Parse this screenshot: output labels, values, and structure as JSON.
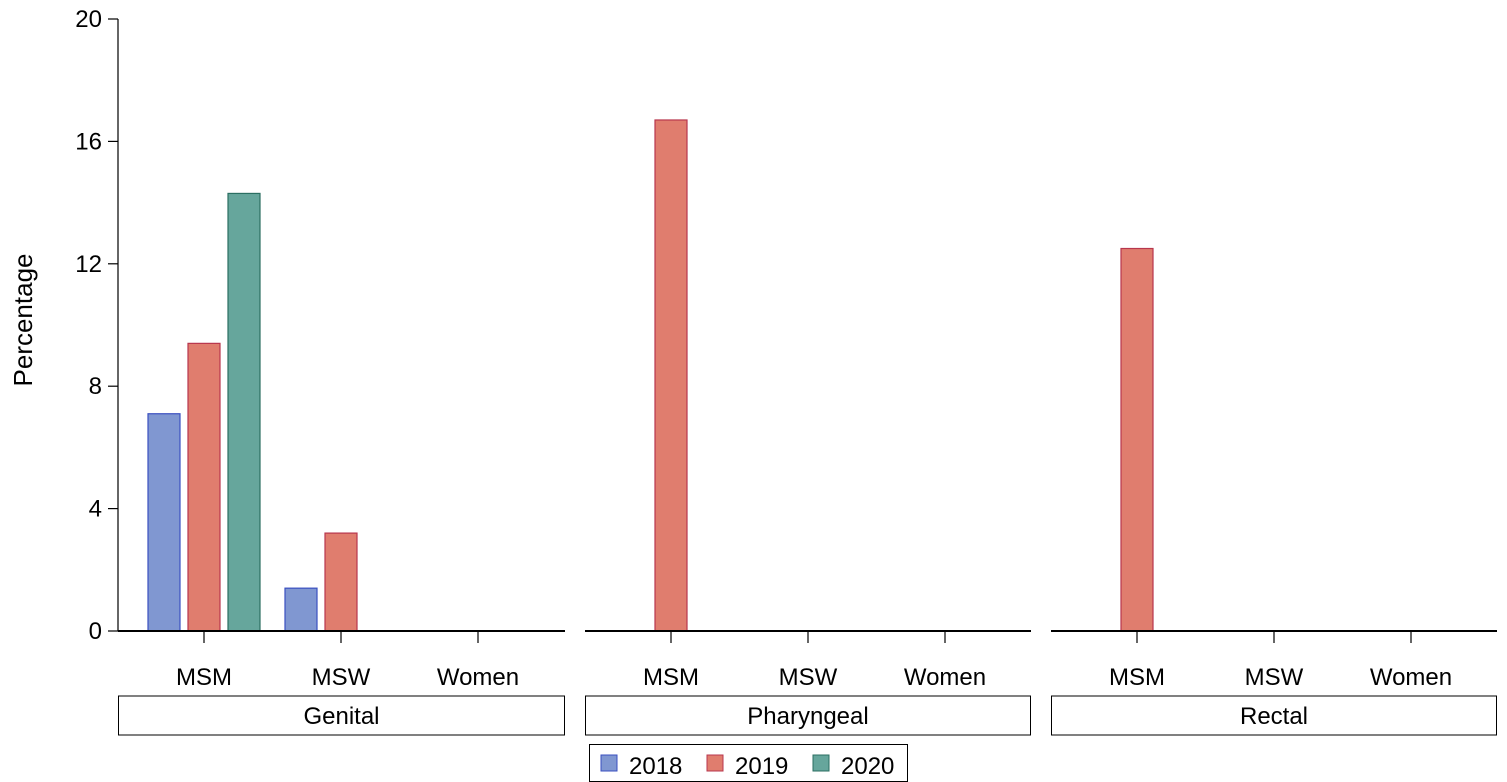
{
  "chart_data": {
    "type": "bar",
    "ylabel": "Percentage",
    "ylim": [
      0,
      20
    ],
    "yticks": [
      0,
      4,
      8,
      12,
      16,
      20
    ],
    "categories": [
      "MSM",
      "MSW",
      "Women"
    ],
    "facets": [
      {
        "name": "Genital",
        "series": [
          {
            "name": "2018",
            "values": [
              7.1,
              1.4,
              0
            ]
          },
          {
            "name": "2019",
            "values": [
              9.4,
              3.2,
              0
            ]
          },
          {
            "name": "2020",
            "values": [
              14.3,
              0,
              0
            ]
          }
        ]
      },
      {
        "name": "Pharyngeal",
        "series": [
          {
            "name": "2018",
            "values": [
              0,
              0,
              0
            ]
          },
          {
            "name": "2019",
            "values": [
              16.7,
              0,
              0
            ]
          },
          {
            "name": "2020",
            "values": [
              0,
              0,
              0
            ]
          }
        ]
      },
      {
        "name": "Rectal",
        "series": [
          {
            "name": "2018",
            "values": [
              0,
              0,
              0
            ]
          },
          {
            "name": "2019",
            "values": [
              12.5,
              0,
              0
            ]
          },
          {
            "name": "2020",
            "values": [
              0,
              0,
              0
            ]
          }
        ]
      }
    ],
    "legend": {
      "placement": "bottom",
      "entries": [
        "2018",
        "2019",
        "2020"
      ]
    },
    "colors": {
      "2018": {
        "fill": "#8097d1",
        "stroke": "#3a4fc0"
      },
      "2019": {
        "fill": "#e07d6e",
        "stroke": "#b8364d"
      },
      "2020": {
        "fill": "#66a69c",
        "stroke": "#2b6f62"
      }
    },
    "grid": false
  }
}
